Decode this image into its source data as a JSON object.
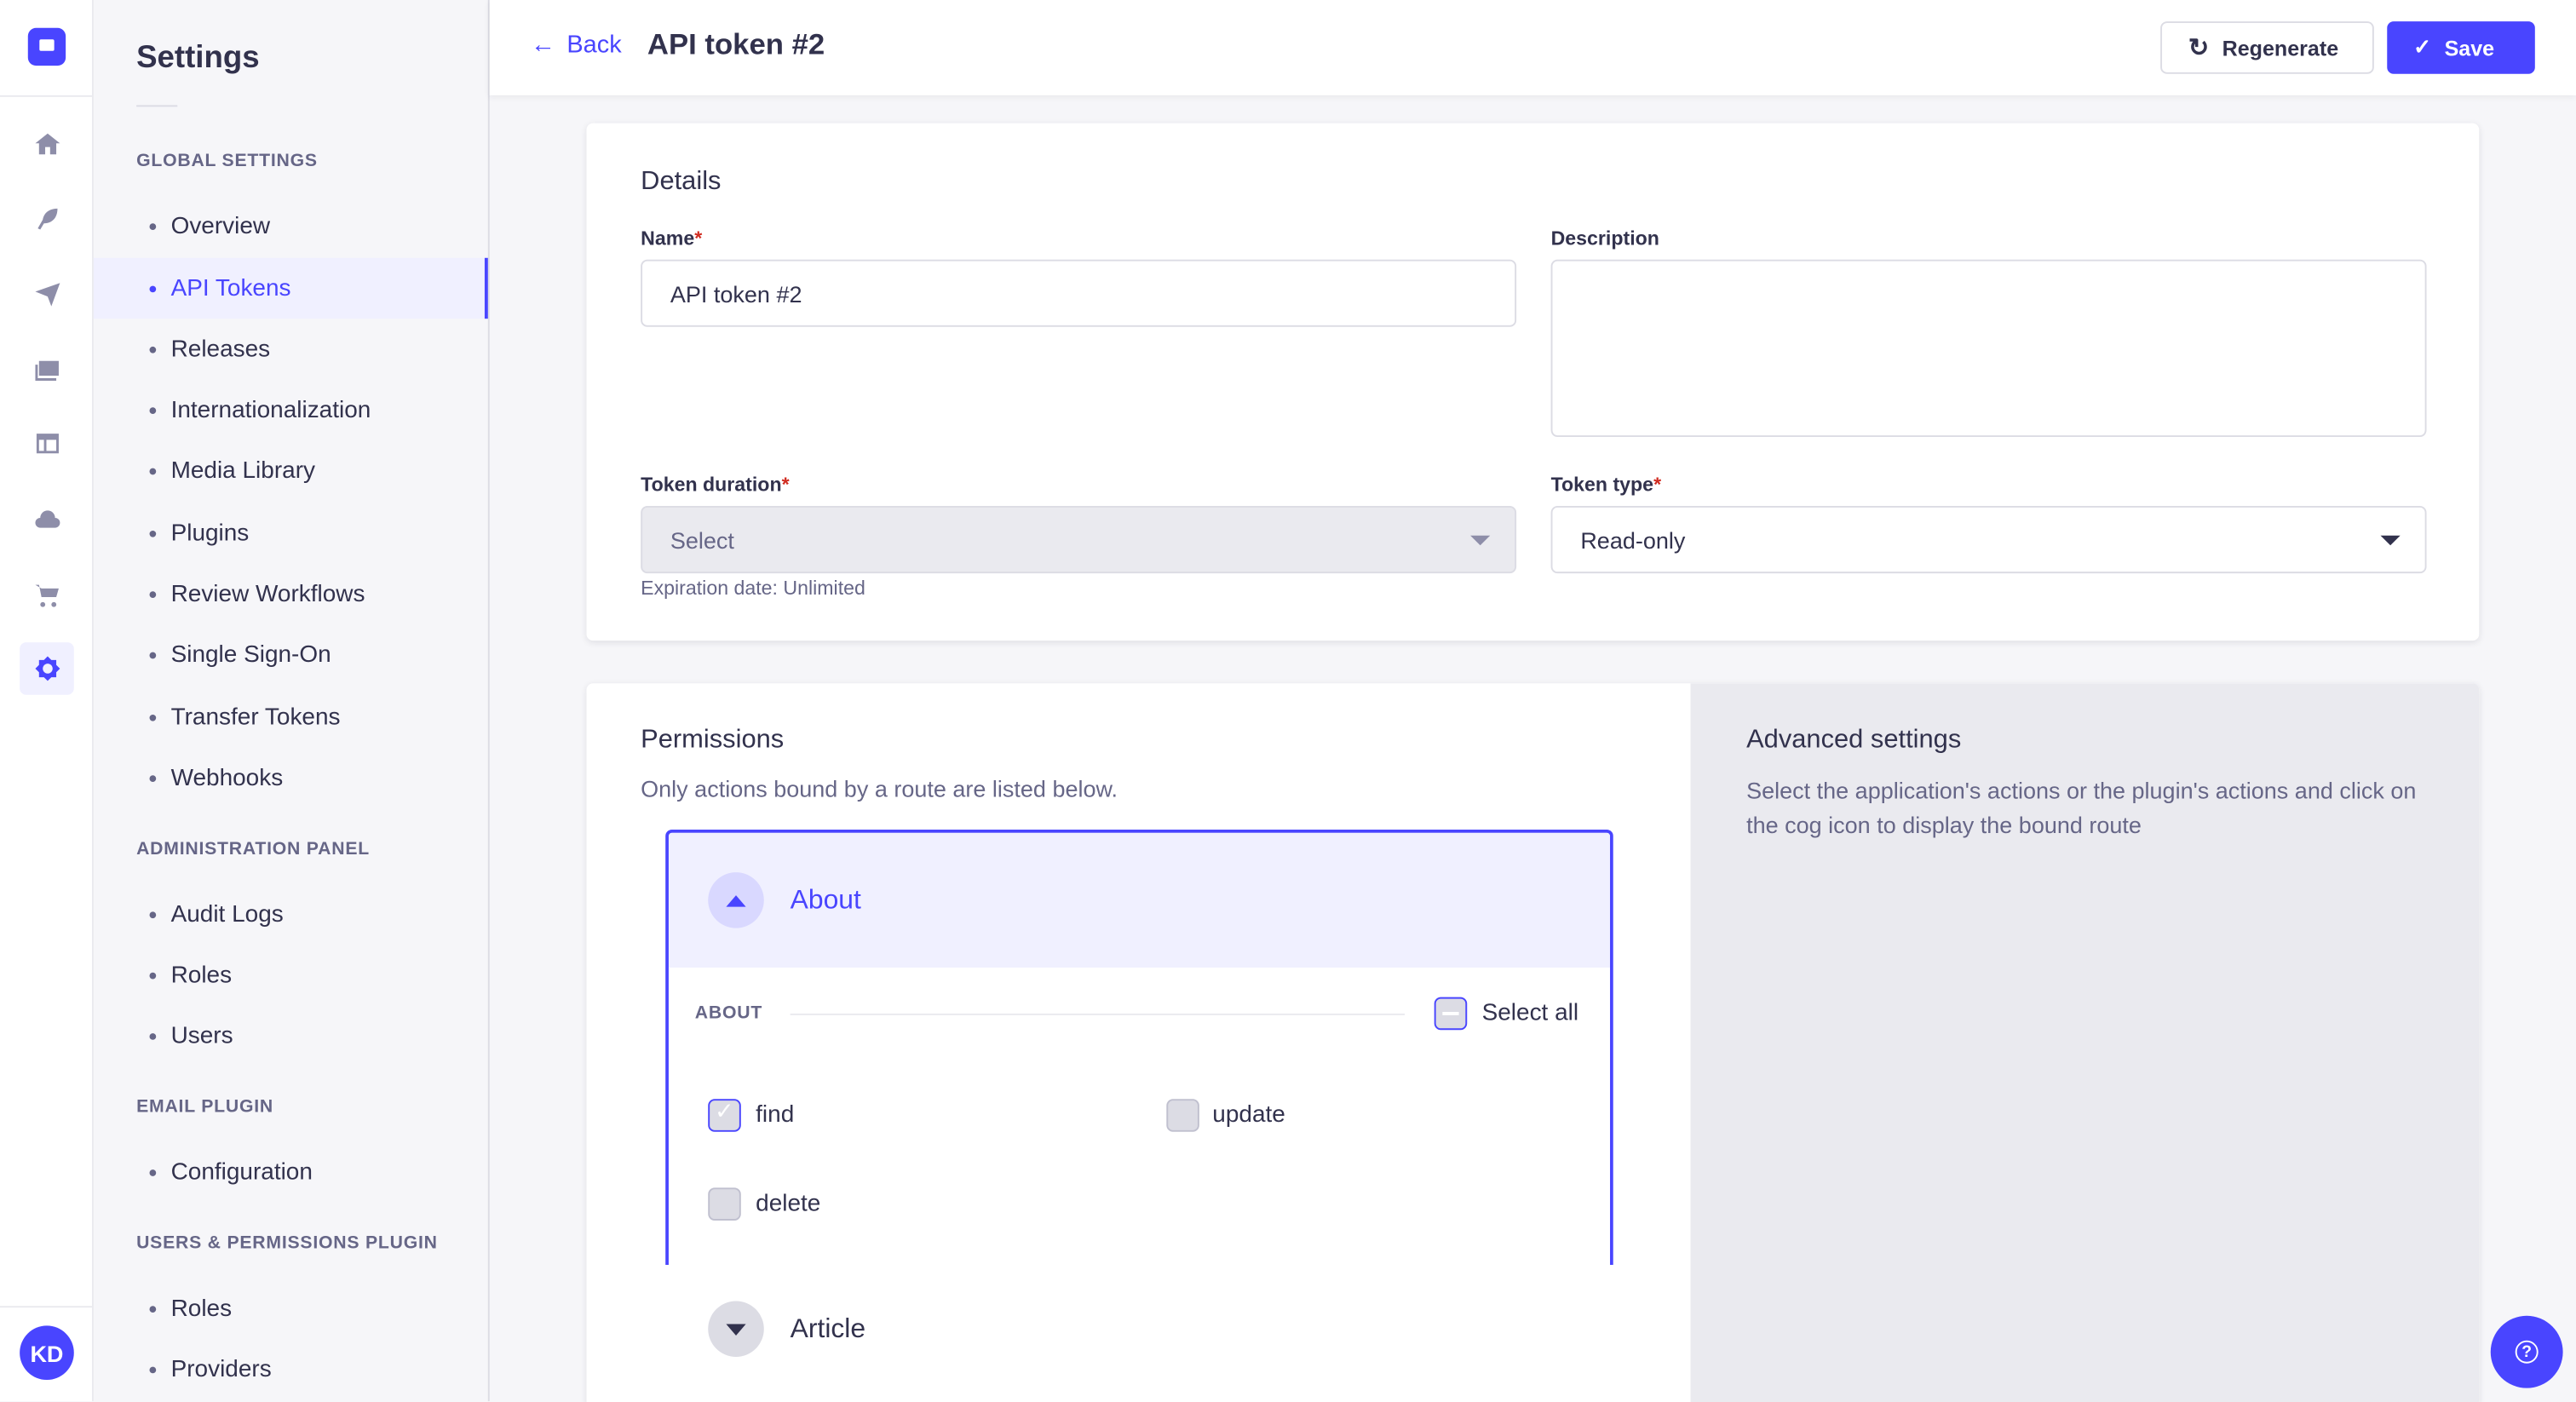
{
  "rail": {
    "icons": [
      "home-icon",
      "feather-icon",
      "paper-plane-icon",
      "images-icon",
      "layout-icon",
      "cloud-icon",
      "cart-icon",
      "cog-icon"
    ],
    "avatar": "KD"
  },
  "sidebar": {
    "title": "Settings",
    "sections": [
      {
        "title": "Global Settings",
        "items": [
          "Overview",
          "API Tokens",
          "Releases",
          "Internationalization",
          "Media Library",
          "Plugins",
          "Review Workflows",
          "Single Sign-On",
          "Transfer Tokens",
          "Webhooks"
        ]
      },
      {
        "title": "Administration Panel",
        "items": [
          "Audit Logs",
          "Roles",
          "Users"
        ]
      },
      {
        "title": "Email Plugin",
        "items": [
          "Configuration"
        ]
      },
      {
        "title": "Users & Permissions Plugin",
        "items": [
          "Roles",
          "Providers"
        ]
      }
    ],
    "active": "API Tokens"
  },
  "header": {
    "back": "Back",
    "title": "API token #2",
    "regenerate": "Regenerate",
    "save": "Save"
  },
  "details": {
    "title": "Details",
    "name_label": "Name",
    "name_value": "API token #2",
    "description_label": "Description",
    "description_value": "",
    "duration_label": "Token duration",
    "duration_placeholder": "Select",
    "expiration": "Expiration date: Unlimited",
    "type_label": "Token type",
    "type_value": "Read-only"
  },
  "permissions": {
    "title": "Permissions",
    "subtitle": "Only actions bound by a route are listed below.",
    "groups": [
      {
        "name": "About",
        "expanded": true,
        "section": "ABOUT",
        "select_all": "Select all",
        "actions": [
          {
            "label": "find",
            "checked": true
          },
          {
            "label": "update",
            "checked": false
          },
          {
            "label": "delete",
            "checked": false
          }
        ]
      },
      {
        "name": "Article",
        "expanded": false
      }
    ]
  },
  "advanced": {
    "title": "Advanced settings",
    "text": "Select the application's actions or the plugin's actions and click on the cog icon to display the bound route"
  },
  "colors": {
    "primary": "#4945ff",
    "primary_light": "#f0f0ff",
    "required": "#d02b20"
  }
}
